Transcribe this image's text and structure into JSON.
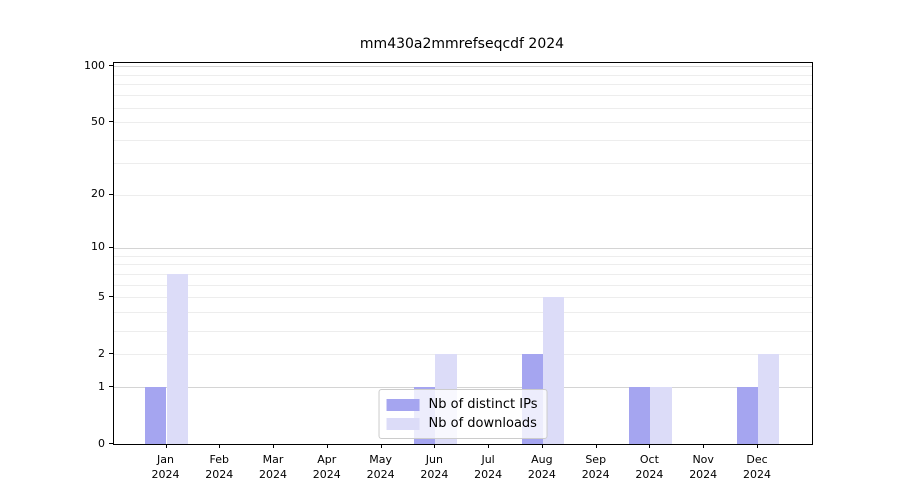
{
  "chart_data": {
    "type": "bar",
    "title": "mm430a2mmrefseqcdf 2024",
    "categories": [
      "Jan",
      "Feb",
      "Mar",
      "Apr",
      "May",
      "Jun",
      "Jul",
      "Aug",
      "Sep",
      "Oct",
      "Nov",
      "Dec"
    ],
    "category_year": "2024",
    "series": [
      {
        "name": "Nb of distinct IPs",
        "color": "#a5a5f0",
        "values": [
          1,
          0,
          0,
          0,
          0,
          1,
          0,
          2,
          0,
          1,
          0,
          1
        ]
      },
      {
        "name": "Nb of downloads",
        "color": "#dcdcf8",
        "values": [
          7,
          0,
          0,
          0,
          0,
          2,
          0,
          5,
          0,
          1,
          0,
          2
        ]
      }
    ],
    "y_scale": "log1p",
    "ylim": [
      0,
      104
    ],
    "y_ticks": [
      0,
      1,
      2,
      5,
      10,
      20,
      50,
      100
    ],
    "y_major_gridlines": [
      1,
      10,
      100
    ],
    "y_minor_gridlines": [
      2,
      3,
      4,
      5,
      6,
      7,
      8,
      9,
      20,
      30,
      40,
      50,
      60,
      70,
      80,
      90
    ],
    "xlabel": "",
    "ylabel": "",
    "grid": true,
    "legend_position": "lower center"
  }
}
